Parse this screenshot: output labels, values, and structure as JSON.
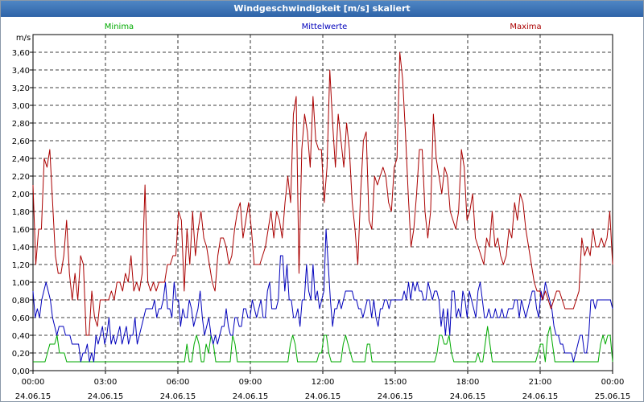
{
  "chart_data": {
    "type": "line",
    "title": "Windgeschwindigkeit [m/s] skaliert",
    "ylabel": "m/s",
    "ylim": [
      0,
      3.8
    ],
    "yticks": [
      "0,00",
      "0,20",
      "0,40",
      "0,60",
      "0,80",
      "1,00",
      "1,20",
      "1,40",
      "1,60",
      "1,80",
      "2,00",
      "2,20",
      "2,40",
      "2,60",
      "2,80",
      "3,00",
      "3,20",
      "3,40",
      "3,60"
    ],
    "xlim": [
      "24.06.15 00:00",
      "25.06.15 00:00"
    ],
    "xticks": [
      {
        "time": "00:00",
        "date": "24.06.15"
      },
      {
        "time": "03:00",
        "date": "24.06.15"
      },
      {
        "time": "06:00",
        "date": "24.06.15"
      },
      {
        "time": "09:00",
        "date": "24.06.15"
      },
      {
        "time": "12:00",
        "date": "24.06.15"
      },
      {
        "time": "15:00",
        "date": "24.06.15"
      },
      {
        "time": "18:00",
        "date": "24.06.15"
      },
      {
        "time": "21:00",
        "date": "24.06.15"
      },
      {
        "time": "00:00",
        "date": "25.06.15"
      }
    ],
    "grid": true,
    "legend_position": "top",
    "series": [
      {
        "name": "Minima",
        "color": "#00aa00",
        "values": [
          0.1,
          0.1,
          0.1,
          0.1,
          0.1,
          0.1,
          0.2,
          0.3,
          0.3,
          0.3,
          0.4,
          0.2,
          0.2,
          0.2,
          0.1,
          0.1,
          0.1,
          0.1,
          0.1,
          0.1,
          0.1,
          0.1,
          0.1,
          0.1,
          0.1,
          0.1,
          0.1,
          0.1,
          0.1,
          0.1,
          0.1,
          0.1,
          0.1,
          0.1,
          0.1,
          0.1,
          0.1,
          0.1,
          0.1,
          0.1,
          0.1,
          0.1,
          0.1,
          0.1,
          0.1,
          0.1,
          0.1,
          0.1,
          0.1,
          0.1,
          0.1,
          0.1,
          0.1,
          0.1,
          0.1,
          0.1,
          0.1,
          0.1,
          0.1,
          0.1,
          0.1,
          0.1,
          0.1,
          0.1,
          0.3,
          0.1,
          0.1,
          0.3,
          0.4,
          0.3,
          0.1,
          0.1,
          0.3,
          0.2,
          0.4,
          0.3,
          0.1,
          0.1,
          0.1,
          0.1,
          0.1,
          0.1,
          0.1,
          0.4,
          0.3,
          0.1,
          0.1,
          0.1,
          0.1,
          0.1,
          0.1,
          0.1,
          0.1,
          0.1,
          0.1,
          0.1,
          0.1,
          0.1,
          0.1,
          0.1,
          0.1,
          0.1,
          0.1,
          0.1,
          0.1,
          0.1,
          0.1,
          0.3,
          0.4,
          0.3,
          0.1,
          0.1,
          0.1,
          0.1,
          0.1,
          0.1,
          0.1,
          0.1,
          0.1,
          0.2,
          0.2,
          0.4,
          0.4,
          0.2,
          0.1,
          0.1,
          0.1,
          0.1,
          0.1,
          0.3,
          0.4,
          0.3,
          0.2,
          0.1,
          0.1,
          0.1,
          0.1,
          0.1,
          0.1,
          0.3,
          0.3,
          0.1,
          0.1,
          0.1,
          0.1,
          0.1,
          0.1,
          0.1,
          0.1,
          0.1,
          0.1,
          0.1,
          0.1,
          0.1,
          0.1,
          0.1,
          0.1,
          0.1,
          0.1,
          0.1,
          0.1,
          0.1,
          0.1,
          0.1,
          0.1,
          0.1,
          0.1,
          0.1,
          0.2,
          0.4,
          0.4,
          0.3,
          0.3,
          0.4,
          0.2,
          0.1,
          0.1,
          0.1,
          0.1,
          0.1,
          0.1,
          0.1,
          0.1,
          0.1,
          0.1,
          0.2,
          0.1,
          0.1,
          0.3,
          0.5,
          0.3,
          0.1,
          0.1,
          0.1,
          0.1,
          0.1,
          0.1,
          0.1,
          0.1,
          0.1,
          0.1,
          0.1,
          0.1,
          0.1,
          0.1,
          0.1,
          0.1,
          0.1,
          0.1,
          0.1,
          0.2,
          0.3,
          0.3,
          0.1,
          0.4,
          0.5,
          0.3,
          0.1,
          0.1,
          0.1,
          0.1,
          0.1,
          0.1,
          0.1,
          0.1,
          0.1,
          0.1,
          0.1,
          0.1,
          0.1,
          0.1,
          0.1,
          0.1,
          0.1,
          0.1,
          0.1,
          0.3,
          0.4,
          0.3,
          0.4,
          0.4,
          0.1
        ]
      },
      {
        "name": "Mittelwerte",
        "color": "#0000bb",
        "values": [
          0.9,
          0.6,
          0.7,
          0.6,
          0.8,
          0.9,
          1.0,
          0.9,
          0.8,
          0.6,
          0.5,
          0.4,
          0.5,
          0.5,
          0.5,
          0.4,
          0.4,
          0.4,
          0.3,
          0.3,
          0.3,
          0.3,
          0.1,
          0.2,
          0.2,
          0.3,
          0.1,
          0.2,
          0.1,
          0.4,
          0.3,
          0.4,
          0.5,
          0.3,
          0.4,
          0.6,
          0.3,
          0.4,
          0.3,
          0.4,
          0.5,
          0.3,
          0.4,
          0.5,
          0.3,
          0.4,
          0.4,
          0.6,
          0.3,
          0.4,
          0.5,
          0.6,
          0.7,
          0.7,
          0.7,
          0.7,
          0.8,
          0.6,
          0.7,
          0.7,
          0.8,
          1.0,
          0.7,
          0.7,
          0.6,
          1.0,
          0.8,
          0.8,
          0.5,
          0.7,
          0.6,
          0.6,
          0.8,
          0.7,
          0.5,
          0.6,
          0.7,
          0.9,
          0.6,
          0.4,
          0.5,
          0.6,
          0.4,
          0.3,
          0.4,
          0.3,
          0.4,
          0.5,
          0.5,
          0.7,
          0.5,
          0.4,
          0.4,
          0.6,
          0.6,
          0.5,
          0.5,
          0.7,
          0.7,
          0.6,
          0.6,
          0.8,
          0.7,
          0.6,
          0.7,
          0.8,
          0.6,
          0.6,
          0.9,
          1.0,
          0.7,
          0.7,
          0.7,
          0.8,
          1.3,
          1.3,
          0.9,
          1.2,
          0.8,
          0.8,
          0.6,
          0.6,
          0.7,
          0.5,
          0.8,
          0.8,
          1.2,
          0.9,
          0.8,
          1.2,
          0.8,
          0.9,
          0.7,
          0.8,
          0.9,
          1.6,
          1.2,
          0.8,
          0.5,
          0.7,
          0.7,
          0.8,
          0.7,
          0.8,
          0.9,
          0.9,
          0.9,
          0.9,
          0.8,
          0.8,
          0.7,
          0.7,
          0.6,
          0.7,
          0.8,
          0.8,
          0.6,
          0.8,
          0.6,
          0.5,
          0.7,
          0.7,
          0.8,
          0.8,
          0.7,
          0.8,
          0.8,
          0.8,
          0.8,
          0.8,
          0.8,
          0.9,
          0.8,
          1.0,
          0.8,
          1.0,
          0.9,
          1.0,
          0.9,
          0.9,
          0.8,
          0.8,
          1.0,
          0.9,
          0.8,
          0.9,
          0.9,
          0.8,
          0.5,
          0.7,
          0.4,
          0.7,
          0.4,
          0.9,
          0.9,
          0.6,
          0.7,
          0.6,
          0.9,
          0.8,
          0.6,
          0.9,
          0.8,
          0.7,
          0.6,
          0.9,
          1.0,
          0.8,
          0.6,
          0.6,
          0.7,
          0.6,
          0.6,
          0.7,
          0.6,
          0.6,
          0.7,
          0.6,
          0.6,
          0.7,
          0.7,
          0.7,
          0.8,
          0.8,
          0.6,
          0.8,
          0.7,
          0.6,
          0.7,
          0.8,
          0.9,
          0.9,
          0.7,
          0.6,
          0.9,
          0.8,
          1.0,
          0.9,
          0.8,
          0.7,
          0.5,
          0.4,
          0.4,
          0.3,
          0.3,
          0.2,
          0.2,
          0.2,
          0.2,
          0.1,
          0.2,
          0.3,
          0.4,
          0.4,
          0.2,
          0.2,
          0.4,
          0.8,
          0.8,
          0.7,
          0.8,
          0.8,
          0.8,
          0.8,
          0.8,
          0.8,
          0.8,
          0.7
        ]
      },
      {
        "name": "Maxima",
        "color": "#aa0000",
        "values": [
          2.1,
          1.2,
          1.6,
          1.6,
          2.4,
          2.3,
          2.5,
          1.9,
          1.3,
          1.1,
          1.1,
          1.3,
          1.7,
          1.1,
          0.8,
          1.1,
          0.8,
          1.3,
          1.2,
          0.4,
          0.4,
          0.9,
          0.6,
          0.5,
          0.8,
          0.8,
          0.8,
          0.8,
          0.9,
          0.8,
          1.0,
          1.0,
          0.9,
          1.1,
          1.0,
          1.3,
          0.9,
          1.0,
          0.9,
          1.1,
          2.1,
          1.0,
          0.9,
          1.0,
          0.9,
          1.0,
          1.0,
          1.0,
          1.2,
          1.2,
          1.3,
          1.3,
          1.8,
          1.7,
          0.9,
          1.6,
          1.2,
          1.8,
          1.3,
          1.6,
          1.8,
          1.5,
          1.4,
          1.2,
          1.0,
          0.9,
          1.3,
          1.5,
          1.5,
          1.4,
          1.2,
          1.3,
          1.6,
          1.8,
          1.9,
          1.5,
          1.7,
          1.9,
          1.6,
          1.2,
          1.2,
          1.2,
          1.3,
          1.4,
          1.6,
          1.8,
          1.5,
          1.8,
          1.7,
          1.5,
          1.9,
          2.2,
          1.9,
          2.9,
          3.1,
          1.1,
          2.5,
          2.9,
          2.7,
          2.3,
          3.1,
          2.6,
          2.5,
          2.5,
          1.9,
          2.3,
          3.4,
          2.8,
          2.3,
          2.9,
          2.6,
          2.3,
          2.8,
          2.5,
          1.9,
          1.6,
          1.2,
          2.0,
          2.6,
          2.7,
          1.7,
          1.6,
          2.2,
          2.1,
          2.2,
          2.3,
          2.2,
          1.9,
          1.8,
          2.3,
          2.4,
          3.6,
          3.3,
          2.7,
          2.0,
          1.4,
          1.6,
          2.0,
          2.5,
          2.5,
          1.8,
          1.5,
          1.8,
          2.9,
          2.4,
          2.2,
          2.0,
          2.3,
          2.2,
          1.8,
          1.7,
          1.6,
          1.8,
          2.5,
          2.3,
          1.7,
          1.8,
          2.0,
          1.5,
          1.4,
          1.3,
          1.2,
          1.5,
          1.4,
          1.8,
          1.4,
          1.5,
          1.3,
          1.2,
          1.3,
          1.6,
          1.5,
          1.9,
          1.7,
          2.0,
          1.9,
          1.6,
          1.4,
          1.2,
          1.0,
          0.9,
          0.9,
          0.8,
          0.9,
          0.8,
          0.7,
          0.8,
          0.9,
          0.9,
          0.8,
          0.7,
          0.7,
          0.7,
          0.7,
          0.8,
          0.9,
          1.5,
          1.3,
          1.4,
          1.3,
          1.6,
          1.4,
          1.4,
          1.5,
          1.4,
          1.5,
          1.8,
          1.2
        ]
      }
    ]
  }
}
